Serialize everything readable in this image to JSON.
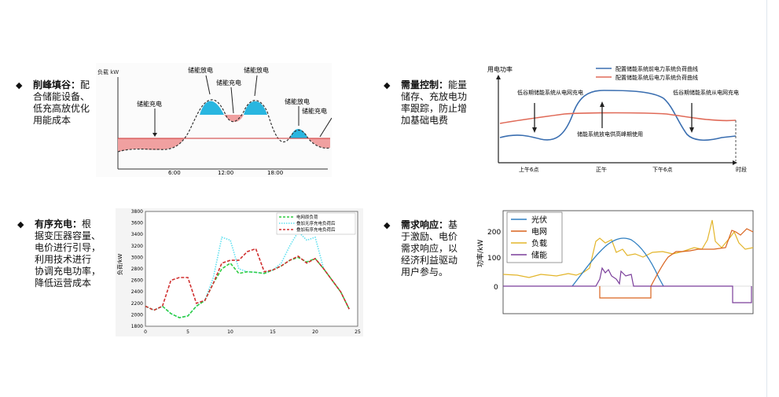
{
  "bullets": [
    {
      "title": "削峰填谷：",
      "lines": [
        "配",
        "合储能设备、",
        "低充高放优化",
        "用能成本"
      ]
    },
    {
      "title": "需量控制：",
      "lines": [
        "能量",
        "储存、充放电功",
        "率跟踪，防止增",
        "加基础电费"
      ]
    },
    {
      "title": "有序充电：",
      "lines": [
        "根",
        "据变压器容量、",
        "电价进行引导，",
        "利用技术进行",
        "协调充电功率，",
        "降低运营成本"
      ]
    },
    {
      "title": "需求响应：",
      "lines": [
        "基",
        "于激励、电价",
        "需求响应，以",
        "经济利益驱动",
        "用户参与。"
      ]
    }
  ],
  "chart_data": [
    {
      "type": "area",
      "title": "",
      "ylabel": "负载 kW",
      "xlabel": "",
      "x_ticks": [
        "6:00",
        "12:00",
        "18:00"
      ],
      "annotations": [
        "储能充电",
        "储能放电",
        "储能充电",
        "储能放电",
        "储能放电",
        "储能充电"
      ],
      "colors": {
        "discharge": "#29b6e0",
        "charge": "#f0a0a0"
      }
    },
    {
      "type": "line",
      "title": "",
      "ylabel": "用电功率",
      "xlabel": "时段",
      "x_ticks": [
        "上午6点",
        "正午",
        "下午6点"
      ],
      "series": [
        {
          "name": "配置储能系统前电力系统负荷曲线",
          "color": "#3a6eb0"
        },
        {
          "name": "配置储能系统后电力系统负荷曲线",
          "color": "#e06a58"
        }
      ],
      "annotations": [
        "低谷期储能系统从电网充电",
        "储能系统放电供高峰期使用",
        "低谷期储能系统从电网充电"
      ]
    },
    {
      "type": "line",
      "title": "",
      "ylabel": "负荷/kW",
      "xlim": [
        0,
        25
      ],
      "ylim": [
        1800,
        3800
      ],
      "x_ticks": [
        0,
        5,
        10,
        15,
        20,
        25
      ],
      "y_ticks": [
        1800,
        2000,
        2200,
        2400,
        2600,
        2800,
        3000,
        3200,
        3400,
        3600,
        3800
      ],
      "grid": false,
      "legend": "top-right",
      "series": [
        {
          "name": "电网原负荷",
          "color": "#2ecc40",
          "style": "dashed",
          "x": [
            0,
            1,
            2,
            3,
            4,
            5,
            6,
            7,
            8,
            9,
            10,
            11,
            12,
            13,
            14,
            15,
            16,
            17,
            18,
            19,
            20,
            21,
            22,
            23,
            24
          ],
          "y": [
            2150,
            2080,
            2150,
            2020,
            1950,
            1980,
            2150,
            2250,
            2550,
            2800,
            2900,
            2720,
            2750,
            2740,
            2720,
            2780,
            2850,
            2950,
            3000,
            2920,
            2980,
            2800,
            2600,
            2400,
            2100
          ]
        },
        {
          "name": "叠加无序充电负荷后",
          "color": "#5fe0f0",
          "style": "dotted",
          "x": [
            0,
            1,
            2,
            3,
            4,
            5,
            6,
            7,
            8,
            9,
            10,
            11,
            12,
            13,
            14,
            15,
            16,
            17,
            18,
            19,
            20,
            21,
            22,
            23,
            24
          ],
          "y": [
            2150,
            2080,
            2150,
            2020,
            1950,
            1980,
            2150,
            2250,
            2650,
            3350,
            3300,
            2800,
            2750,
            2740,
            2720,
            2780,
            2900,
            3200,
            3450,
            3300,
            3350,
            2800,
            2600,
            2400,
            2100
          ]
        },
        {
          "name": "叠加有序充电负荷后",
          "color": "#d03030",
          "style": "dashed",
          "x": [
            0,
            1,
            2,
            3,
            4,
            5,
            6,
            7,
            8,
            9,
            10,
            11,
            12,
            13,
            14,
            15,
            16,
            17,
            18,
            19,
            20,
            21,
            22,
            23,
            24
          ],
          "y": [
            2150,
            2080,
            2150,
            2600,
            2650,
            2650,
            2200,
            2250,
            2550,
            2900,
            2950,
            2950,
            3100,
            3150,
            2750,
            2780,
            2850,
            2950,
            3020,
            2900,
            2980,
            2800,
            2600,
            2400,
            2100
          ]
        }
      ]
    },
    {
      "type": "line",
      "title": "",
      "ylabel": "功率/kW",
      "y_ticks": [
        0,
        100,
        200
      ],
      "ylim": [
        -80,
        290
      ],
      "legend": "top-left",
      "series": [
        {
          "name": "光伏",
          "color": "#2f7fc1"
        },
        {
          "name": "电网",
          "color": "#d9631e"
        },
        {
          "name": "负载",
          "color": "#e3b52a"
        },
        {
          "name": "储能",
          "color": "#7a3e9a"
        }
      ]
    }
  ]
}
